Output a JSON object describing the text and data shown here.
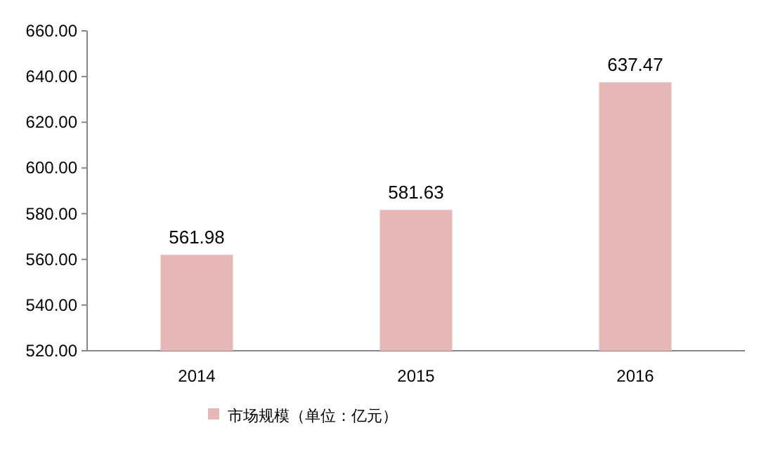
{
  "chart_data": {
    "type": "bar",
    "categories": [
      "2014",
      "2015",
      "2016"
    ],
    "series": [
      {
        "name": "市场规模（单位：亿元）",
        "color": "#e6b8b7",
        "values": [
          561.98,
          581.63,
          637.47
        ]
      }
    ],
    "ylim": [
      520,
      660
    ],
    "yticks": [
      {
        "value": 520,
        "label": "520.00"
      },
      {
        "value": 540,
        "label": "540.00"
      },
      {
        "value": 560,
        "label": "560.00"
      },
      {
        "value": 580,
        "label": "580.00"
      },
      {
        "value": 600,
        "label": "600.00"
      },
      {
        "value": 620,
        "label": "620.00"
      },
      {
        "value": 640,
        "label": "640.00"
      },
      {
        "value": 660,
        "label": "660.00"
      }
    ],
    "data_labels": true,
    "legend": "bottom"
  }
}
